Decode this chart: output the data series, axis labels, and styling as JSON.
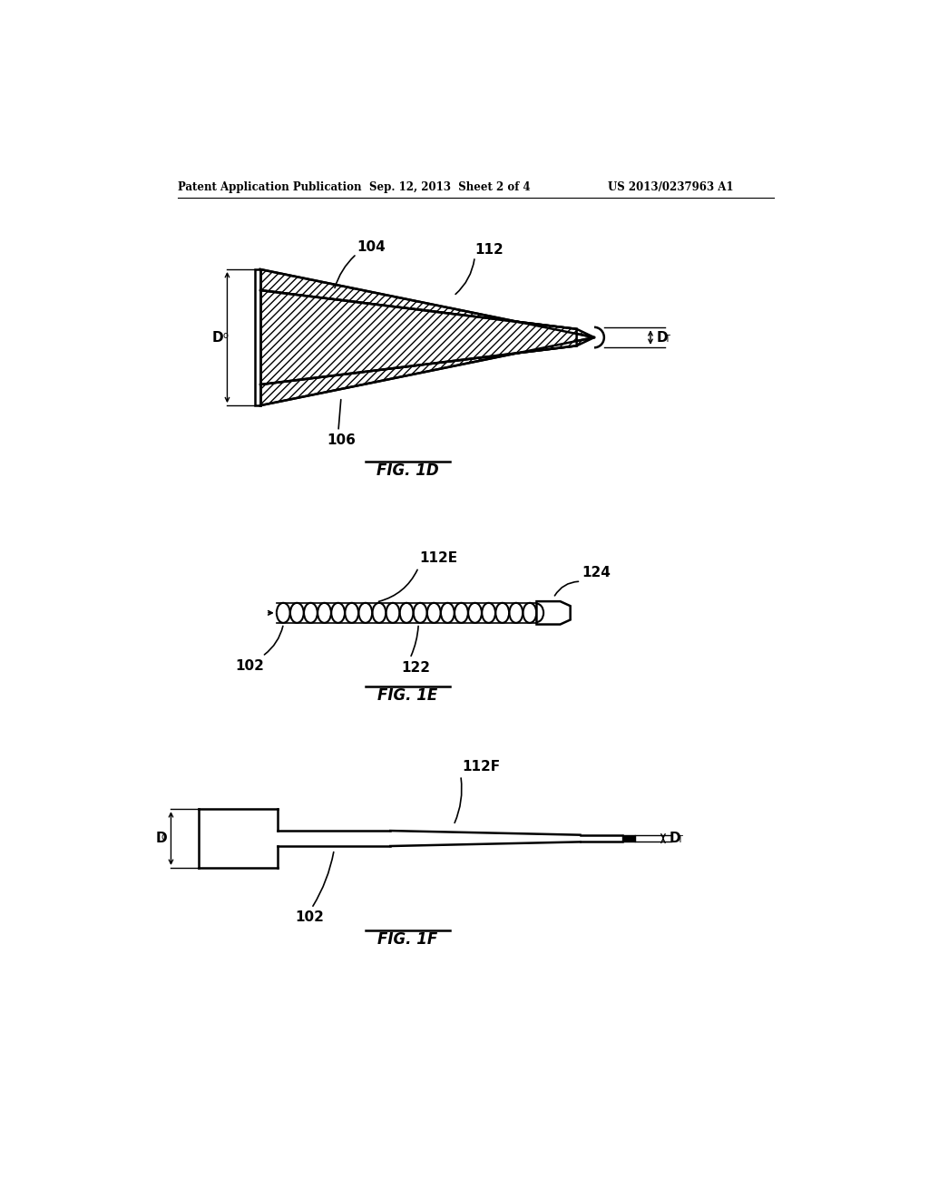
{
  "bg_color": "#ffffff",
  "header_left": "Patent Application Publication",
  "header_mid": "Sep. 12, 2013  Sheet 2 of 4",
  "header_right": "US 2013/0237963 A1",
  "fig1d_label": "FIG. 1D",
  "fig1e_label": "FIG. 1E",
  "fig1f_label": "FIG. 1F",
  "label_104": "104",
  "label_112": "112",
  "label_106": "106",
  "label_Do": "D",
  "label_Do_sub": "o",
  "label_DT": "D",
  "label_DT_sub": "T",
  "label_112E": "112E",
  "label_102_1e": "102",
  "label_122": "122",
  "label_124": "124",
  "label_112F": "112F",
  "label_102_1f": "102",
  "lw": 1.8
}
